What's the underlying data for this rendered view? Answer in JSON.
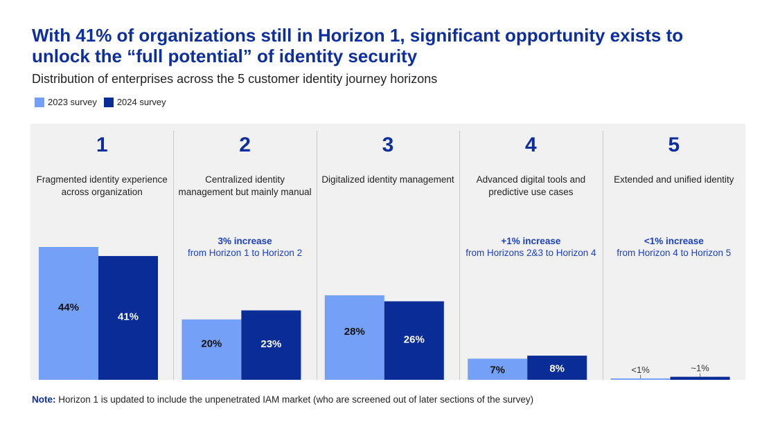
{
  "title": "With 41% of organizations still in Horizon 1, significant opportunity exists to unlock the “full potential” of identity security",
  "subtitle": "Distribution of enterprises across the 5 customer identity journey horizons",
  "colors": {
    "s2023": "#74a0f7",
    "s2024": "#0a2c96",
    "title": "#0d2e9e",
    "note": "#1b3fc4"
  },
  "legend": [
    {
      "label": "2023 survey",
      "color": "#74a0f7"
    },
    {
      "label": "2024 survey",
      "color": "#0a2c96"
    }
  ],
  "horizons": [
    {
      "number": "1",
      "description": "Fragmented identity experience across organization",
      "note": null
    },
    {
      "number": "2",
      "description": "Centralized identity management but mainly manual",
      "note": {
        "highlight": "3% increase",
        "text": "from Horizon 1 to Horizon 2"
      }
    },
    {
      "number": "3",
      "description": "Digitalized identity management",
      "note": null
    },
    {
      "number": "4",
      "description": "Advanced digital tools and predictive use cases",
      "note": {
        "highlight": "+1% increase",
        "text": "from Horizons 2&3 to Horizon 4"
      }
    },
    {
      "number": "5",
      "description": "Extended and unified identity",
      "note": {
        "highlight": "<1% increase",
        "text": "from Horizon 4 to Horizon 5"
      }
    }
  ],
  "chart_data": {
    "type": "bar",
    "categories": [
      "1",
      "2",
      "3",
      "4",
      "5"
    ],
    "series": [
      {
        "name": "2023 survey",
        "values": [
          44,
          20,
          28,
          7,
          0.5
        ],
        "labels": [
          "44%",
          "20%",
          "28%",
          "7%",
          "<1%"
        ]
      },
      {
        "name": "2024 survey",
        "values": [
          41,
          23,
          26,
          8,
          1
        ],
        "labels": [
          "41%",
          "23%",
          "26%",
          "8%",
          "~1%"
        ]
      }
    ],
    "ylim": [
      0,
      44
    ]
  },
  "footnote": {
    "label": "Note:",
    "text": " Horizon 1 is updated to include the unpenetrated IAM market (who are screened out of later sections of the survey)"
  }
}
